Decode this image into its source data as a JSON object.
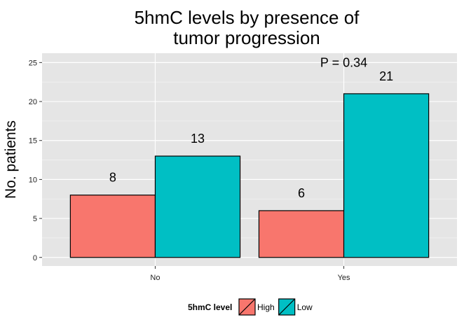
{
  "chart_data": {
    "type": "bar",
    "title_lines": [
      "5hmC levels by presence of",
      "tumor progression"
    ],
    "xlabel": "",
    "ylabel": "No. patients",
    "categories": [
      "No",
      "Yes"
    ],
    "series": [
      {
        "name": "High",
        "values": [
          8,
          6
        ],
        "color": "#F8766D"
      },
      {
        "name": "Low",
        "values": [
          13,
          21
        ],
        "color": "#00BFC4"
      }
    ],
    "ylim": [
      -1.1,
      26.2
    ],
    "yticks": [
      0,
      5,
      10,
      15,
      20,
      25
    ],
    "grid": true,
    "annotation": {
      "text": "P = 0.34",
      "category": "Yes",
      "y": 25
    },
    "legend": {
      "title": "5hmC level",
      "position": "bottom"
    }
  }
}
